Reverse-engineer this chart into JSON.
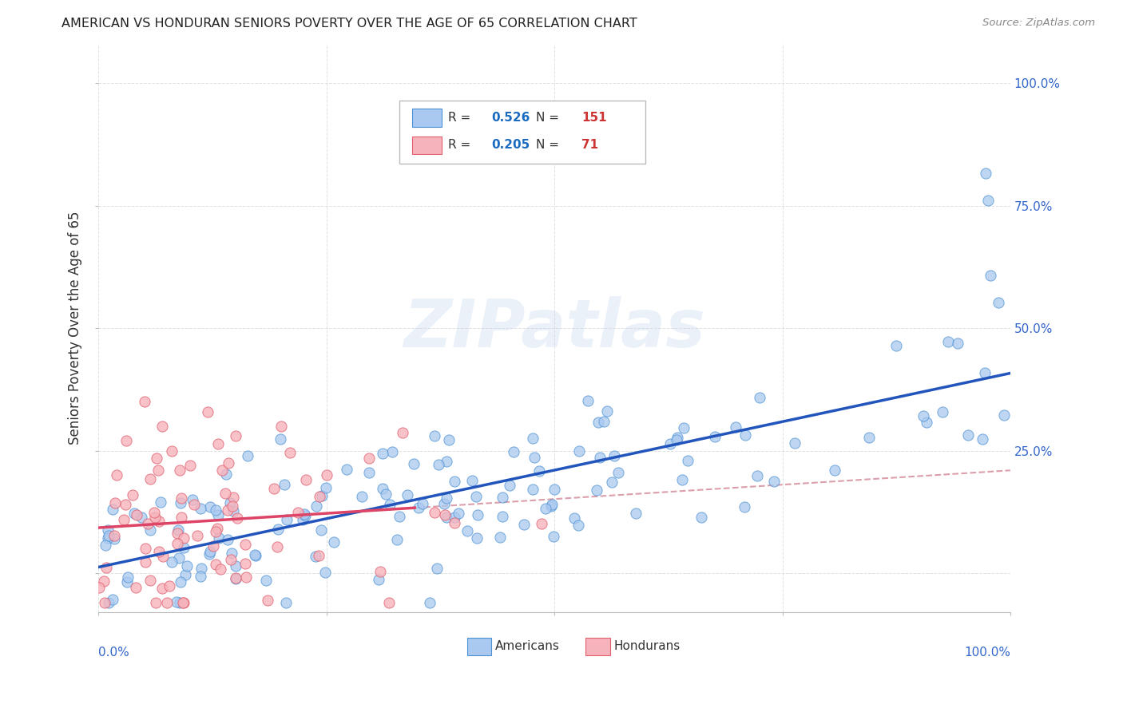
{
  "title": "AMERICAN VS HONDURAN SENIORS POVERTY OVER THE AGE OF 65 CORRELATION CHART",
  "source": "Source: ZipAtlas.com",
  "ylabel": "Seniors Poverty Over the Age of 65",
  "watermark": "ZIPatlas",
  "american_R": 0.526,
  "american_N": 151,
  "honduran_R": 0.205,
  "honduran_N": 71,
  "american_color": "#aac9f0",
  "american_edge_color": "#4a90d4",
  "honduran_color": "#f7b3bb",
  "honduran_edge_color": "#e06070",
  "background_color": "#ffffff",
  "grid_color": "#cccccc",
  "title_color": "#222222",
  "legend_r_color": "#1a6abf",
  "legend_n_color": "#cc3333",
  "right_axis_label_color": "#3366cc",
  "trend_american_color": "#2255bb",
  "trend_honduran_color": "#dd4466",
  "trend_dashed_color": "#cc7788",
  "xlim": [
    0.0,
    1.0
  ],
  "ylim": [
    -0.08,
    1.08
  ]
}
